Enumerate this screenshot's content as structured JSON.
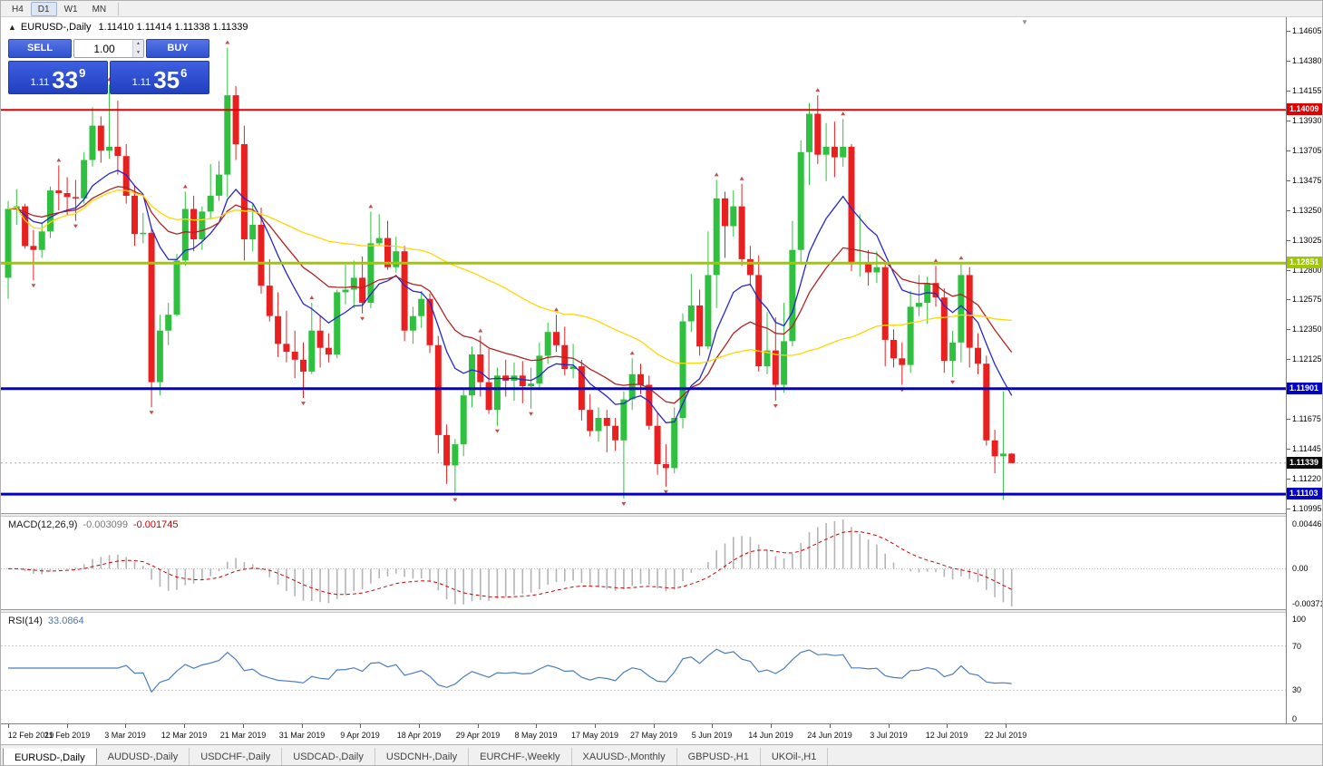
{
  "toolbar": {
    "timeframes": [
      {
        "label": "H4",
        "active": false
      },
      {
        "label": "D1",
        "active": true
      },
      {
        "label": "W1",
        "active": false
      },
      {
        "label": "MN",
        "active": false
      }
    ]
  },
  "icons": {
    "collapse": "▲",
    "shift_marker": "▼",
    "spin_up": "▲",
    "spin_down": "▼"
  },
  "chart_header": {
    "symbol_label": "EURUSD-,Daily",
    "ohlc": "1.11410 1.11414 1.11338 1.11339"
  },
  "trade_panel": {
    "sell_label": "SELL",
    "buy_label": "BUY",
    "volume": "1.00",
    "sell_price_small": "1.11",
    "sell_price_big": "33",
    "sell_price_pip": "9",
    "buy_price_small": "1.11",
    "buy_price_big": "35",
    "buy_price_pip": "6"
  },
  "price_axis": {
    "labels": [
      "1.14605",
      "1.14380",
      "1.14155",
      "1.13930",
      "1.13705",
      "1.13475",
      "1.13250",
      "1.13025",
      "1.12800",
      "1.12575",
      "1.12350",
      "1.12125",
      "1.11675",
      "1.11445",
      "1.11220",
      "1.10995"
    ],
    "badges": [
      {
        "value": "1.14009",
        "color": "#e00000"
      },
      {
        "value": "1.12851",
        "color": "#a0c800"
      },
      {
        "value": "1.11901",
        "color": "#0000c8"
      },
      {
        "value": "1.11339",
        "color": "#0a0a0a"
      },
      {
        "value": "1.11103",
        "color": "#0000c8"
      }
    ]
  },
  "macd_panel": {
    "title": "MACD(12,26,9)",
    "value1": "-0.003099",
    "value2": "-0.001745",
    "axis": [
      "0.004465",
      "0.00",
      "-0.00371"
    ]
  },
  "rsi_panel": {
    "title": "RSI(14)",
    "value": "33.0864",
    "axis": [
      "100",
      "70",
      "30",
      "0"
    ]
  },
  "date_axis": {
    "labels": [
      "12 Feb 2019",
      "21 Feb 2019",
      "3 Mar 2019",
      "12 Mar 2019",
      "21 Mar 2019",
      "31 Mar 2019",
      "9 Apr 2019",
      "18 Apr 2019",
      "29 Apr 2019",
      "8 May 2019",
      "17 May 2019",
      "27 May 2019",
      "5 Jun 2019",
      "14 Jun 2019",
      "24 Jun 2019",
      "3 Jul 2019",
      "12 Jul 2019",
      "22 Jul 2019"
    ]
  },
  "tabs": [
    {
      "label": "EURUSD-,Daily",
      "active": true
    },
    {
      "label": "AUDUSD-,Daily",
      "active": false
    },
    {
      "label": "USDCHF-,Daily",
      "active": false
    },
    {
      "label": "USDCAD-,Daily",
      "active": false
    },
    {
      "label": "USDCNH-,Daily",
      "active": false
    },
    {
      "label": "EURCHF-,Weekly",
      "active": false
    },
    {
      "label": "XAUUSD-,Monthly",
      "active": false
    },
    {
      "label": "GBPUSD-,H1",
      "active": false
    },
    {
      "label": "UKOil-,H1",
      "active": false
    }
  ],
  "chart_data": {
    "type": "candlestick",
    "symbol": "EURUSD-,Daily",
    "y_range": [
      1.1096,
      1.1471
    ],
    "current_price": 1.11339,
    "up_color": "#30c040",
    "down_color": "#e82020",
    "fractal_color": "#c0504d",
    "hlines": [
      {
        "price": 1.14009,
        "color": "#e00000",
        "width": 2
      },
      {
        "price": 1.12851,
        "color": "#a0c800",
        "width": 3
      },
      {
        "price": 1.11901,
        "color": "#0000c8",
        "width": 3
      },
      {
        "price": 1.11103,
        "color": "#0000c8",
        "width": 3
      }
    ],
    "moving_averages": [
      {
        "type": "ema",
        "period": 10,
        "color": "#2626cc"
      },
      {
        "type": "ema",
        "period": 21,
        "color": "#b22222"
      },
      {
        "type": "sma",
        "period": 50,
        "color": "#ffd700"
      }
    ],
    "indicators": {
      "macd": {
        "fast": 12,
        "slow": 26,
        "signal": 9,
        "histogram_color": "#b4b4b4",
        "signal_color": "#d00000"
      },
      "rsi": {
        "period": 14,
        "color": "#4b7dbd",
        "levels": [
          70,
          30
        ]
      }
    },
    "x_dates": [
      "12 Feb 2019",
      "21 Feb 2019",
      "3 Mar 2019",
      "12 Mar 2019",
      "21 Mar 2019",
      "31 Mar 2019",
      "9 Apr 2019",
      "18 Apr 2019",
      "29 Apr 2019",
      "8 May 2019",
      "17 May 2019",
      "27 May 2019",
      "5 Jun 2019",
      "14 Jun 2019",
      "24 Jun 2019",
      "3 Jul 2019",
      "12 Jul 2019",
      "22 Jul 2019"
    ],
    "candles": [
      [
        1.1274,
        1.1332,
        1.1258,
        1.1326
      ],
      [
        1.1326,
        1.1341,
        1.1314,
        1.1328
      ],
      [
        1.1328,
        1.133,
        1.1296,
        1.1298
      ],
      [
        1.1298,
        1.131,
        1.1272,
        1.1295
      ],
      [
        1.1295,
        1.1316,
        1.1289,
        1.1309
      ],
      [
        1.1309,
        1.1343,
        1.1304,
        1.134
      ],
      [
        1.134,
        1.1359,
        1.1325,
        1.1338
      ],
      [
        1.1338,
        1.135,
        1.1321,
        1.1335
      ],
      [
        1.1335,
        1.1348,
        1.1317,
        1.1334
      ],
      [
        1.1334,
        1.1369,
        1.133,
        1.1363
      ],
      [
        1.1363,
        1.1403,
        1.1358,
        1.1389
      ],
      [
        1.1389,
        1.1396,
        1.1361,
        1.137
      ],
      [
        1.137,
        1.142,
        1.1364,
        1.1373
      ],
      [
        1.1373,
        1.1408,
        1.1352,
        1.1366
      ],
      [
        1.1366,
        1.1375,
        1.133,
        1.1336
      ],
      [
        1.1336,
        1.1344,
        1.1298,
        1.1307
      ],
      [
        1.1307,
        1.1323,
        1.13,
        1.1308
      ],
      [
        1.1308,
        1.1312,
        1.1176,
        1.1195
      ],
      [
        1.1195,
        1.1246,
        1.1185,
        1.1234
      ],
      [
        1.1234,
        1.1255,
        1.1223,
        1.1246
      ],
      [
        1.1246,
        1.1292,
        1.1245,
        1.1287
      ],
      [
        1.1287,
        1.1339,
        1.1283,
        1.1326
      ],
      [
        1.1326,
        1.1336,
        1.1294,
        1.1303
      ],
      [
        1.1303,
        1.1328,
        1.1295,
        1.1324
      ],
      [
        1.1324,
        1.136,
        1.1318,
        1.1336
      ],
      [
        1.1336,
        1.1362,
        1.1332,
        1.1352
      ],
      [
        1.1352,
        1.1448,
        1.1335,
        1.1412
      ],
      [
        1.1412,
        1.1419,
        1.1363,
        1.1375
      ],
      [
        1.1375,
        1.1389,
        1.1287,
        1.1303
      ],
      [
        1.1303,
        1.133,
        1.1294,
        1.1314
      ],
      [
        1.1314,
        1.1327,
        1.1262,
        1.1268
      ],
      [
        1.1268,
        1.1288,
        1.1241,
        1.1245
      ],
      [
        1.1245,
        1.1263,
        1.1214,
        1.1224
      ],
      [
        1.1224,
        1.1249,
        1.121,
        1.1218
      ],
      [
        1.1218,
        1.1234,
        1.1198,
        1.1212
      ],
      [
        1.1212,
        1.1225,
        1.1183,
        1.1203
      ],
      [
        1.1203,
        1.1255,
        1.1201,
        1.1234
      ],
      [
        1.1234,
        1.1245,
        1.1206,
        1.1221
      ],
      [
        1.1221,
        1.1232,
        1.121,
        1.1216
      ],
      [
        1.1216,
        1.1265,
        1.1213,
        1.1263
      ],
      [
        1.1263,
        1.1284,
        1.1254,
        1.1265
      ],
      [
        1.1265,
        1.1287,
        1.1251,
        1.1274
      ],
      [
        1.1274,
        1.129,
        1.1247,
        1.1255
      ],
      [
        1.1255,
        1.1324,
        1.1251,
        1.13
      ],
      [
        1.13,
        1.1322,
        1.1298,
        1.1304
      ],
      [
        1.1304,
        1.1317,
        1.128,
        1.1282
      ],
      [
        1.1282,
        1.1305,
        1.1278,
        1.1294
      ],
      [
        1.1294,
        1.1298,
        1.1226,
        1.1234
      ],
      [
        1.1234,
        1.1252,
        1.1224,
        1.1245
      ],
      [
        1.1245,
        1.1264,
        1.1236,
        1.1258
      ],
      [
        1.1258,
        1.1262,
        1.1217,
        1.1223
      ],
      [
        1.1223,
        1.123,
        1.1141,
        1.1155
      ],
      [
        1.1155,
        1.1163,
        1.1118,
        1.1132
      ],
      [
        1.1132,
        1.1152,
        1.111,
        1.1148
      ],
      [
        1.1148,
        1.119,
        1.1139,
        1.1185
      ],
      [
        1.1185,
        1.1222,
        1.1176,
        1.1216
      ],
      [
        1.1216,
        1.123,
        1.1184,
        1.1195
      ],
      [
        1.1195,
        1.122,
        1.1171,
        1.1174
      ],
      [
        1.1174,
        1.1206,
        1.1162,
        1.12
      ],
      [
        1.12,
        1.1212,
        1.1184,
        1.1196
      ],
      [
        1.1196,
        1.121,
        1.1181,
        1.12
      ],
      [
        1.12,
        1.1211,
        1.1179,
        1.1192
      ],
      [
        1.1192,
        1.1206,
        1.1175,
        1.1194
      ],
      [
        1.1194,
        1.1225,
        1.1189,
        1.1215
      ],
      [
        1.1215,
        1.124,
        1.1209,
        1.1233
      ],
      [
        1.1233,
        1.1246,
        1.1218,
        1.1223
      ],
      [
        1.1223,
        1.1237,
        1.12,
        1.1205
      ],
      [
        1.1205,
        1.1224,
        1.1198,
        1.1207
      ],
      [
        1.1207,
        1.1212,
        1.1166,
        1.1174
      ],
      [
        1.1174,
        1.1186,
        1.1154,
        1.1158
      ],
      [
        1.1158,
        1.1176,
        1.115,
        1.1168
      ],
      [
        1.1168,
        1.1174,
        1.1142,
        1.1162
      ],
      [
        1.1162,
        1.1168,
        1.1143,
        1.1151
      ],
      [
        1.1151,
        1.1188,
        1.1107,
        1.1182
      ],
      [
        1.1182,
        1.1213,
        1.1174,
        1.1201
      ],
      [
        1.1201,
        1.1209,
        1.1186,
        1.1193
      ],
      [
        1.1193,
        1.12,
        1.1159,
        1.1162
      ],
      [
        1.1162,
        1.1172,
        1.1125,
        1.1133
      ],
      [
        1.1133,
        1.1148,
        1.1116,
        1.113
      ],
      [
        1.113,
        1.1176,
        1.1126,
        1.1168
      ],
      [
        1.1168,
        1.1247,
        1.116,
        1.1241
      ],
      [
        1.1241,
        1.1277,
        1.1233,
        1.1253
      ],
      [
        1.1253,
        1.1265,
        1.1215,
        1.1222
      ],
      [
        1.1222,
        1.1309,
        1.122,
        1.1276
      ],
      [
        1.1276,
        1.1348,
        1.1251,
        1.1334
      ],
      [
        1.1334,
        1.1339,
        1.1289,
        1.1313
      ],
      [
        1.1313,
        1.134,
        1.1305,
        1.1328
      ],
      [
        1.1328,
        1.1345,
        1.1283,
        1.1288
      ],
      [
        1.1288,
        1.1298,
        1.1268,
        1.1276
      ],
      [
        1.1276,
        1.1291,
        1.1203,
        1.1207
      ],
      [
        1.1207,
        1.1248,
        1.1201,
        1.1219
      ],
      [
        1.1219,
        1.1244,
        1.1181,
        1.1193
      ],
      [
        1.1193,
        1.1255,
        1.1187,
        1.1226
      ],
      [
        1.1226,
        1.1317,
        1.1222,
        1.1295
      ],
      [
        1.1295,
        1.1378,
        1.1285,
        1.1369
      ],
      [
        1.1369,
        1.1406,
        1.1344,
        1.1398
      ],
      [
        1.1398,
        1.1412,
        1.136,
        1.1367
      ],
      [
        1.1367,
        1.1391,
        1.1347,
        1.1373
      ],
      [
        1.1373,
        1.1392,
        1.135,
        1.1365
      ],
      [
        1.1365,
        1.1394,
        1.1358,
        1.1373
      ],
      [
        1.1373,
        1.1375,
        1.1279,
        1.1285
      ],
      [
        1.1285,
        1.1322,
        1.1275,
        1.1285
      ],
      [
        1.1285,
        1.1295,
        1.1268,
        1.1278
      ],
      [
        1.1278,
        1.1294,
        1.127,
        1.1282
      ],
      [
        1.1282,
        1.1286,
        1.1207,
        1.1227
      ],
      [
        1.1227,
        1.1235,
        1.1206,
        1.1213
      ],
      [
        1.1213,
        1.1225,
        1.1193,
        1.1208
      ],
      [
        1.1208,
        1.1264,
        1.1202,
        1.1252
      ],
      [
        1.1252,
        1.1276,
        1.1245,
        1.1255
      ],
      [
        1.1255,
        1.1275,
        1.1239,
        1.127
      ],
      [
        1.127,
        1.1283,
        1.1252,
        1.1259
      ],
      [
        1.1259,
        1.1266,
        1.1202,
        1.1211
      ],
      [
        1.1211,
        1.1234,
        1.1199,
        1.1225
      ],
      [
        1.1225,
        1.1285,
        1.121,
        1.1276
      ],
      [
        1.1276,
        1.1282,
        1.1206,
        1.1221
      ],
      [
        1.1221,
        1.1232,
        1.1201,
        1.1209
      ],
      [
        1.1209,
        1.1215,
        1.1147,
        1.1151
      ],
      [
        1.1151,
        1.1159,
        1.1126,
        1.1139
      ],
      [
        1.1139,
        1.1188,
        1.1106,
        1.1141
      ],
      [
        1.1141,
        1.11414,
        1.11338,
        1.11339
      ]
    ]
  }
}
